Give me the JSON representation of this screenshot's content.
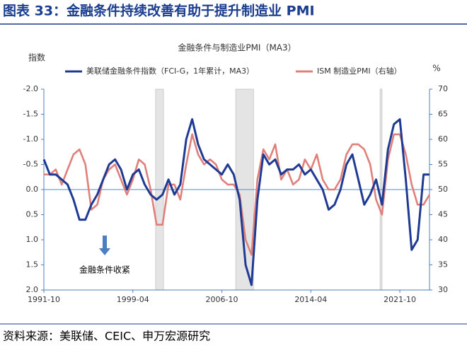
{
  "header": {
    "title": "图表 33：金融条件持续改善有助于提升制造业 PMI"
  },
  "chart_data": {
    "type": "line",
    "title": "金融条件与制造业PMI（MA3）",
    "y_label": "指数",
    "y2_label": "%",
    "x": [
      "1991-10",
      "1992-04",
      "1992-10",
      "1993-04",
      "1993-10",
      "1994-04",
      "1994-10",
      "1995-04",
      "1995-10",
      "1996-04",
      "1996-10",
      "1997-04",
      "1997-10",
      "1998-04",
      "1998-10",
      "1999-04",
      "1999-10",
      "2000-04",
      "2000-10",
      "2001-04",
      "2001-10",
      "2002-04",
      "2002-10",
      "2003-04",
      "2003-10",
      "2004-04",
      "2004-10",
      "2005-04",
      "2005-10",
      "2006-04",
      "2006-10",
      "2007-04",
      "2007-10",
      "2008-04",
      "2008-10",
      "2009-04",
      "2009-10",
      "2010-04",
      "2010-10",
      "2011-04",
      "2011-10",
      "2012-04",
      "2012-10",
      "2013-04",
      "2013-10",
      "2014-04",
      "2014-10",
      "2015-04",
      "2015-10",
      "2016-04",
      "2016-10",
      "2017-04",
      "2017-10",
      "2018-04",
      "2018-10",
      "2019-04",
      "2019-10",
      "2020-04",
      "2020-10",
      "2021-04",
      "2021-10",
      "2022-04",
      "2022-10",
      "2023-04",
      "2023-10",
      "2024-04"
    ],
    "xlim": [
      "1991-10",
      "2024-04"
    ],
    "xticks": [
      "1991-10",
      "1999-04",
      "2006-10",
      "2014-04",
      "2021-10"
    ],
    "series": [
      {
        "name": "美联储金融条件指数（FCI-G，1年累计，MA3）",
        "color": "#1f3a93",
        "values": [
          -0.6,
          -0.3,
          -0.3,
          -0.2,
          -0.1,
          0.2,
          0.6,
          0.6,
          0.3,
          0.1,
          -0.2,
          -0.5,
          -0.6,
          -0.4,
          0.0,
          -0.3,
          -0.4,
          -0.1,
          0.1,
          0.2,
          0.1,
          -0.2,
          0.1,
          -0.1,
          -1.0,
          -1.4,
          -0.9,
          -0.6,
          -0.5,
          -0.4,
          -0.3,
          -0.5,
          -0.3,
          0.2,
          1.5,
          1.9,
          0.2,
          -0.7,
          -0.5,
          -0.6,
          -0.3,
          -0.4,
          -0.4,
          -0.5,
          -0.3,
          -0.4,
          -0.2,
          0.0,
          0.4,
          0.3,
          0.0,
          -0.5,
          -0.7,
          -0.2,
          0.3,
          0.1,
          -0.2,
          0.3,
          -0.8,
          -1.3,
          -1.4,
          -0.2,
          1.2,
          1.0,
          -0.3,
          -0.3
        ]
      },
      {
        "name": "ISM 制造业PMI（右轴）",
        "color": "#e0807a",
        "axis": "y2",
        "values": [
          53,
          53,
          54,
          51,
          54,
          57,
          58,
          55,
          46,
          47,
          52,
          54,
          55,
          52,
          49,
          52,
          56,
          55,
          50,
          43,
          43,
          51,
          51,
          48,
          55,
          61,
          57,
          55,
          56,
          55,
          52,
          51,
          51,
          49,
          40,
          37,
          52,
          58,
          56,
          59,
          52,
          54,
          51,
          52,
          56,
          54,
          57,
          52,
          50,
          50,
          52,
          57,
          59,
          59,
          58,
          55,
          48,
          45,
          56,
          61,
          61,
          57,
          51,
          47,
          47,
          49
        ]
      }
    ],
    "ylim": [
      -2,
      2
    ],
    "y_inverted": true,
    "yticks": [
      {
        "value": -2,
        "label": "-2.0"
      },
      {
        "value": -1.5,
        "label": "-1.5"
      },
      {
        "value": -1,
        "label": "-1.0"
      },
      {
        "value": -0.5,
        "label": "-0.5"
      },
      {
        "value": 0,
        "label": "0.0"
      },
      {
        "value": 0.5,
        "label": "0.5"
      },
      {
        "value": 1,
        "label": "1.0"
      },
      {
        "value": 1.5,
        "label": "1.5"
      },
      {
        "value": 2,
        "label": "2.0"
      }
    ],
    "y2lim": [
      30,
      70
    ],
    "y2ticks": [
      30,
      35,
      40,
      45,
      50,
      55,
      60,
      65,
      70
    ],
    "shaded_periods": [
      [
        "2001-03",
        "2001-11"
      ],
      [
        "2007-12",
        "2009-06"
      ],
      [
        "2020-02",
        "2020-04"
      ]
    ],
    "annotation": "金融条件收紧"
  },
  "footer": {
    "source": "资料来源：美联储、CEIC、申万宏源研究"
  }
}
